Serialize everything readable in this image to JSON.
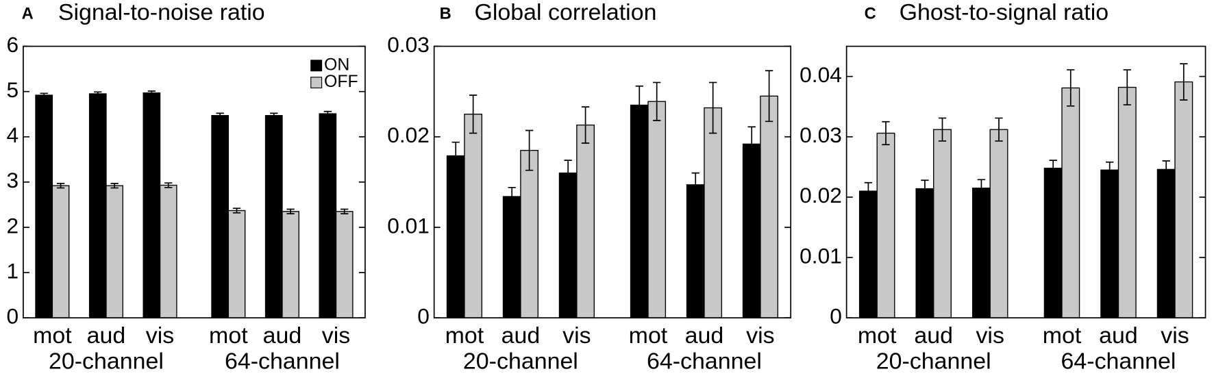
{
  "chart_data": [
    {
      "type": "bar",
      "label": "A",
      "title": "Signal-to-noise ratio",
      "categories": [
        "mot",
        "aud",
        "vis",
        "mot",
        "aud",
        "vis"
      ],
      "groups": [
        "20-channel",
        "64-channel"
      ],
      "ylim": [
        0,
        6
      ],
      "yticks": [
        0,
        1,
        2,
        3,
        4,
        5,
        6
      ],
      "legend": "upper right",
      "series": [
        {
          "name": "ON",
          "color": "#000000",
          "values": [
            4.92,
            4.95,
            4.97,
            4.47,
            4.47,
            4.51
          ],
          "errors": [
            0.04,
            0.04,
            0.04,
            0.05,
            0.05,
            0.05
          ]
        },
        {
          "name": "OFF",
          "color": "#c8c8c8",
          "values": [
            2.92,
            2.92,
            2.93,
            2.37,
            2.35,
            2.35
          ],
          "errors": [
            0.05,
            0.05,
            0.05,
            0.05,
            0.05,
            0.05
          ]
        }
      ]
    },
    {
      "type": "bar",
      "label": "B",
      "title": "Global correlation",
      "categories": [
        "mot",
        "aud",
        "vis",
        "mot",
        "aud",
        "vis"
      ],
      "groups": [
        "20-channel",
        "64-channel"
      ],
      "ylim": [
        0,
        0.03
      ],
      "yticks": [
        0,
        0.01,
        0.02,
        0.03
      ],
      "series": [
        {
          "color": "#000000",
          "values": [
            0.0179,
            0.0134,
            0.016,
            0.0235,
            0.0147,
            0.0192
          ],
          "errors": [
            0.0015,
            0.001,
            0.0014,
            0.0021,
            0.0013,
            0.0019
          ]
        },
        {
          "color": "#c8c8c8",
          "values": [
            0.0225,
            0.0185,
            0.0213,
            0.0239,
            0.0232,
            0.0245
          ],
          "errors": [
            0.0021,
            0.0022,
            0.002,
            0.0021,
            0.0028,
            0.0028
          ]
        }
      ]
    },
    {
      "type": "bar",
      "label": "C",
      "title": "Ghost-to-signal ratio",
      "categories": [
        "mot",
        "aud",
        "vis",
        "mot",
        "aud",
        "vis"
      ],
      "groups": [
        "20-channel",
        "64-channel"
      ],
      "ylim": [
        0,
        0.045
      ],
      "yticks": [
        0,
        0.01,
        0.02,
        0.03,
        0.04
      ],
      "series": [
        {
          "color": "#000000",
          "values": [
            0.021,
            0.0214,
            0.0215,
            0.0248,
            0.0245,
            0.0246
          ],
          "errors": [
            0.0014,
            0.0014,
            0.0014,
            0.0013,
            0.0013,
            0.0014
          ]
        },
        {
          "color": "#c8c8c8",
          "values": [
            0.0306,
            0.0312,
            0.0312,
            0.0381,
            0.0382,
            0.0391
          ],
          "errors": [
            0.0019,
            0.0019,
            0.0019,
            0.003,
            0.0029,
            0.003
          ]
        }
      ]
    }
  ]
}
